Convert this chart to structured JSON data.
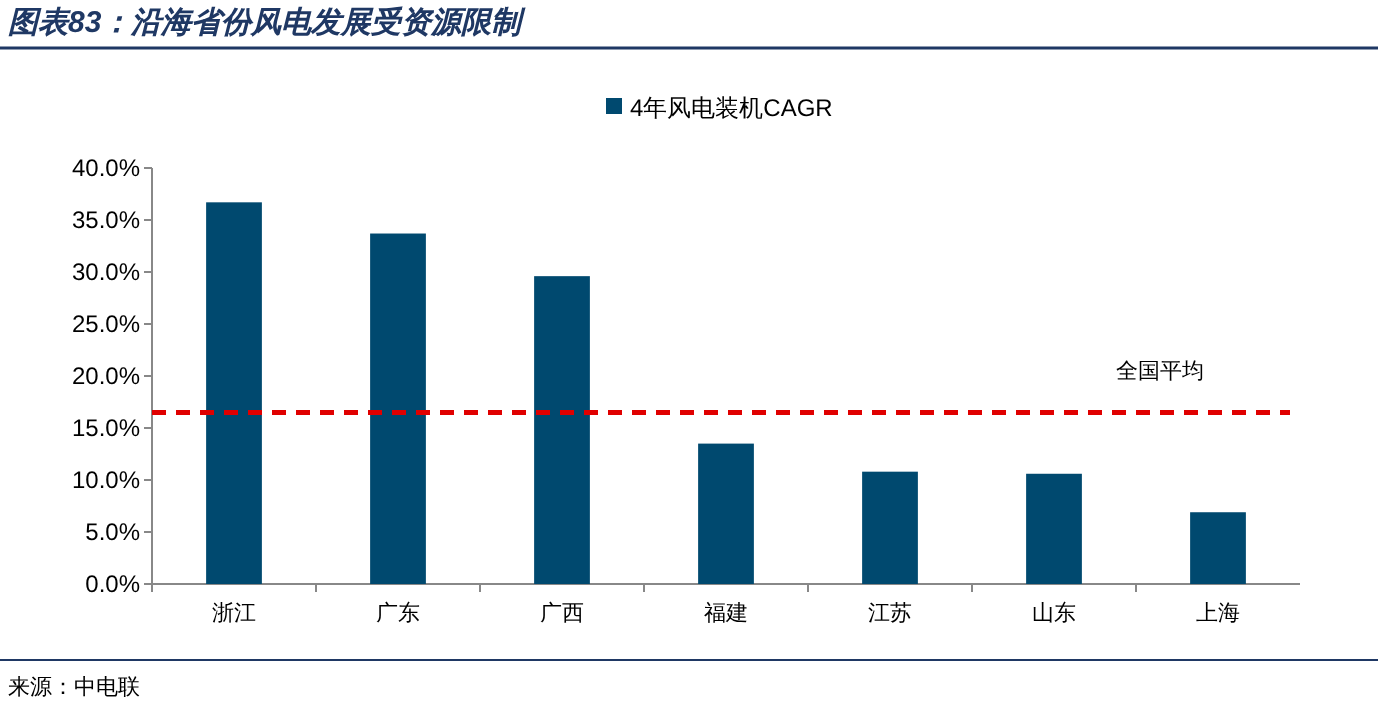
{
  "chart_data": {
    "type": "bar",
    "title": "图表83：沿海省份风电发展受资源限制",
    "categories": [
      "浙江",
      "广东",
      "广西",
      "福建",
      "江苏",
      "山东",
      "上海"
    ],
    "series": [
      {
        "name": "4年风电装机CAGR",
        "color": "#00496f",
        "values": [
          36.7,
          33.7,
          29.6,
          13.5,
          10.8,
          10.6,
          6.9
        ]
      }
    ],
    "ylim": [
      0,
      40
    ],
    "yticks": [
      {
        "value": 0,
        "label": "0.0%"
      },
      {
        "value": 5,
        "label": "5.0%"
      },
      {
        "value": 10,
        "label": "10.0%"
      },
      {
        "value": 15,
        "label": "15.0%"
      },
      {
        "value": 20,
        "label": "20.0%"
      },
      {
        "value": 25,
        "label": "25.0%"
      },
      {
        "value": 30,
        "label": "30.0%"
      },
      {
        "value": 35,
        "label": "35.0%"
      },
      {
        "value": 40,
        "label": "40.0%"
      }
    ],
    "ref_lines": [
      {
        "axis": "y",
        "value": 16.5,
        "label": "全国平均",
        "color": "#e00000",
        "line_style": "dashed"
      }
    ],
    "legend": "top",
    "annotations": [
      "来源：中电联"
    ]
  }
}
